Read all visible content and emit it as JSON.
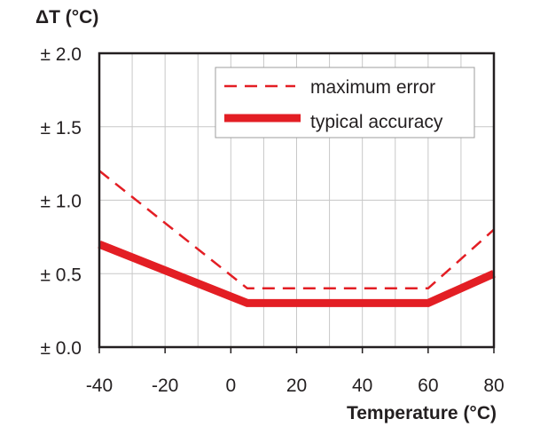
{
  "chart_data": {
    "type": "line",
    "ylabel": "ΔT (°C)",
    "xlabel": "Temperature (°C)",
    "xlim": [
      -40,
      80
    ],
    "ylim": [
      0,
      2.0
    ],
    "x_ticks": [
      -40,
      -20,
      0,
      20,
      40,
      60,
      80
    ],
    "x_tick_labels": [
      "-40",
      "-20",
      "0",
      "20",
      "40",
      "60",
      "80"
    ],
    "y_ticks": [
      0,
      0.5,
      1.0,
      1.5,
      2.0
    ],
    "y_tick_labels": [
      "± 0.0",
      "± 0.5",
      "± 1.0",
      "± 1.5",
      "± 2.0"
    ],
    "grid": true,
    "x_grid_step": 10,
    "legend_placement": "top-right",
    "series": [
      {
        "name": "maximum error",
        "style": "dashed",
        "color": "#e31e24",
        "x": [
          -40,
          5,
          60,
          80
        ],
        "y": [
          1.2,
          0.4,
          0.4,
          0.8
        ]
      },
      {
        "name": "typical accuracy",
        "style": "solid-thick",
        "color": "#e31e24",
        "x": [
          -40,
          5,
          60,
          80
        ],
        "y": [
          0.7,
          0.3,
          0.3,
          0.5
        ]
      }
    ]
  }
}
